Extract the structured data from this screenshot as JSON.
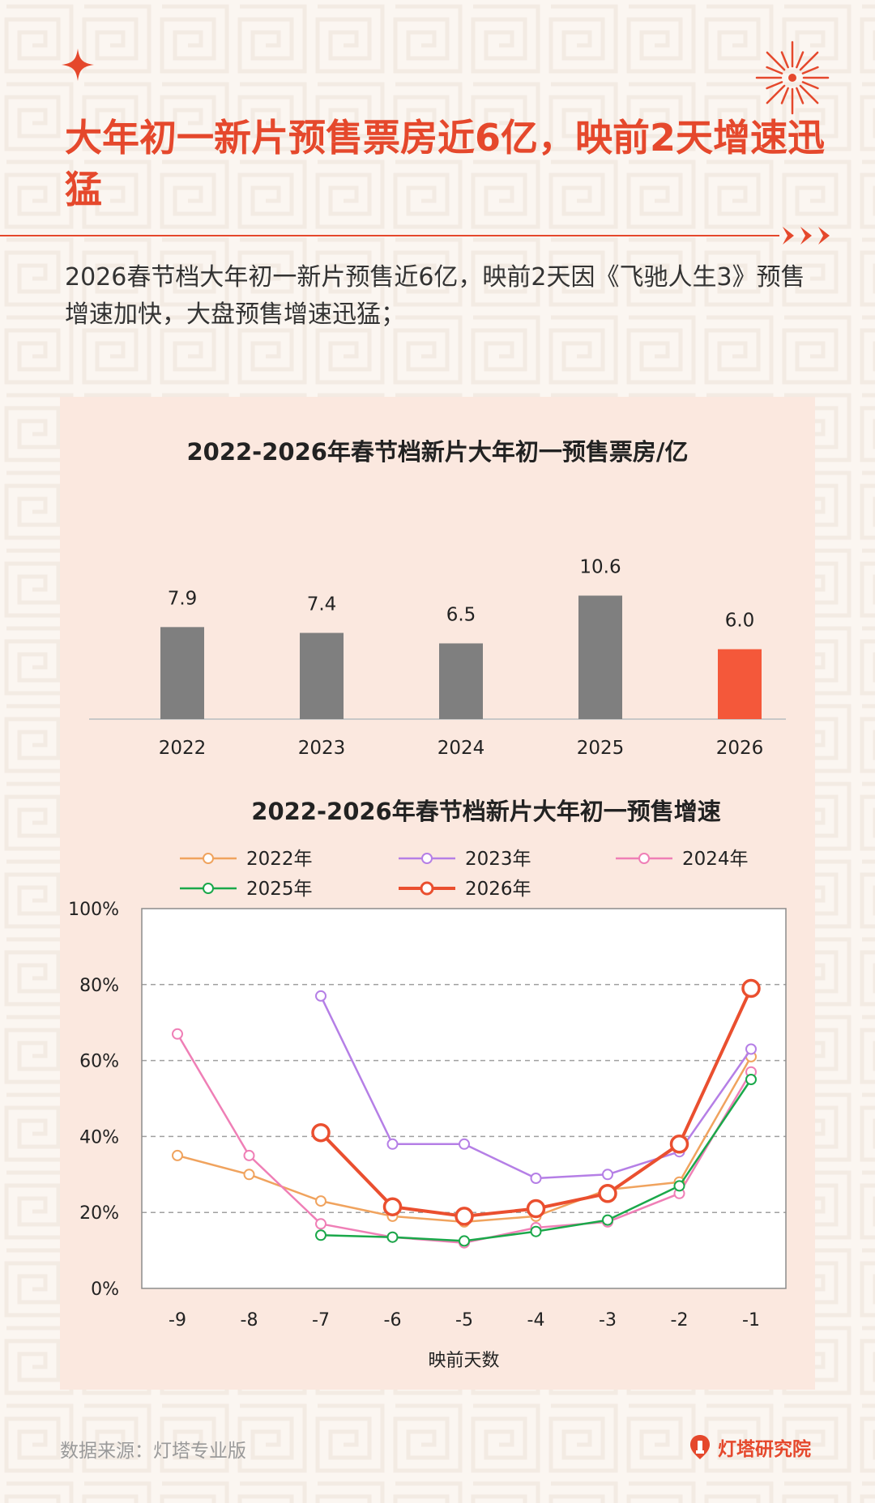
{
  "header": {
    "title": "大年初一新片预售票房近6亿，映前2天增速迅猛",
    "subtitle": "2026春节档大年初一新片预售近6亿，映前2天因《飞驰人生3》预售增速加快，大盘预售增速迅猛；"
  },
  "footer": {
    "source": "数据来源：灯塔专业版",
    "brand": "灯塔研究院"
  },
  "colors": {
    "accent": "#e5482c",
    "bar_gray": "#7f7f7f",
    "bar_highlight": "#f4583a",
    "panel_bg": "#fbe8df"
  },
  "chart_data": [
    {
      "type": "bar",
      "title": "2022-2026年春节档新片大年初一预售票房/亿",
      "categories": [
        "2022",
        "2023",
        "2024",
        "2025",
        "2026"
      ],
      "values": [
        7.9,
        7.4,
        6.5,
        10.6,
        6.0
      ],
      "value_labels": [
        "7.9",
        "7.4",
        "6.5",
        "10.6",
        "6.0"
      ],
      "highlight_index": 4,
      "grid": false,
      "ylim": [
        0,
        12
      ]
    },
    {
      "type": "line",
      "title": "2022-2026年春节档新片大年初一预售增速",
      "xlabel": "映前天数",
      "x": [
        -9,
        -8,
        -7,
        -6,
        -5,
        -4,
        -3,
        -2,
        -1
      ],
      "x_tick_labels": [
        "-9",
        "-8",
        "-7",
        "-6",
        "-5",
        "-4",
        "-3",
        "-2",
        "-1"
      ],
      "ylim": [
        0,
        100
      ],
      "y_ticks": [
        0,
        20,
        40,
        60,
        80,
        100
      ],
      "y_tick_labels": [
        "0%",
        "20%",
        "40%",
        "60%",
        "80%",
        "100%"
      ],
      "grid": true,
      "legend_position": "top",
      "series": [
        {
          "name": "2022年",
          "color": "#f0a35e",
          "values": [
            35,
            30,
            23,
            19,
            17.5,
            19,
            26,
            28,
            61
          ]
        },
        {
          "name": "2023年",
          "color": "#b57fe6",
          "values": [
            null,
            null,
            77,
            38,
            38,
            29,
            30,
            36,
            63
          ]
        },
        {
          "name": "2024年",
          "color": "#ef7fb6",
          "values": [
            67,
            35,
            17,
            13.5,
            12,
            16,
            17.5,
            25,
            57
          ]
        },
        {
          "name": "2025年",
          "color": "#1aa84a",
          "values": [
            null,
            null,
            14,
            13.5,
            12.5,
            15,
            18,
            27,
            55
          ]
        },
        {
          "name": "2026年",
          "color": "#ea4f2f",
          "values": [
            null,
            null,
            41,
            21.5,
            19,
            21,
            25,
            38,
            79
          ]
        }
      ]
    }
  ]
}
